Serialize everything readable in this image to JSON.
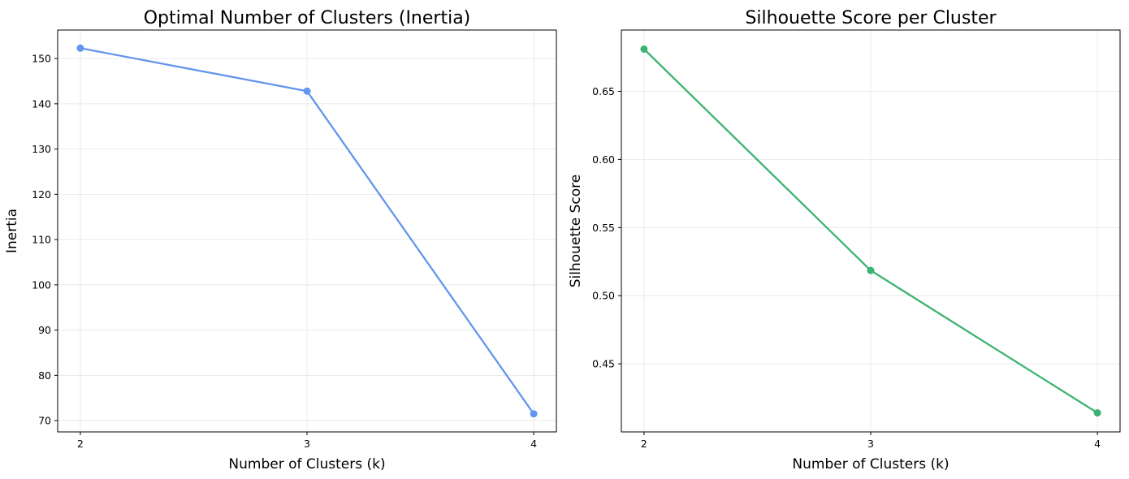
{
  "chart_data": [
    {
      "type": "line",
      "title": "Optimal Number of Clusters (Inertia)",
      "xlabel": "Number of Clusters (k)",
      "ylabel": "Inertia",
      "x": [
        2,
        3,
        4
      ],
      "y": [
        152.3,
        142.8,
        71.5
      ],
      "xlim": [
        1.9,
        4.1
      ],
      "ylim": [
        67.5,
        156.3
      ],
      "xticks": [
        2,
        3,
        4
      ],
      "yticks": [
        70,
        80,
        90,
        100,
        110,
        120,
        130,
        140,
        150
      ],
      "color": "#6495ED",
      "grid": true
    },
    {
      "type": "line",
      "title": "Silhouette Score per Cluster",
      "xlabel": "Number of Clusters (k)",
      "ylabel": "Silhouette Score",
      "x": [
        2,
        3,
        4
      ],
      "y": [
        0.681,
        0.5185,
        0.414
      ],
      "xlim": [
        1.9,
        4.1
      ],
      "ylim": [
        0.4,
        0.695
      ],
      "xticks": [
        2,
        3,
        4
      ],
      "yticks": [
        "0.45",
        "0.50",
        "0.55",
        "0.60",
        "0.65"
      ],
      "color": "#3CB371",
      "grid": true
    }
  ]
}
